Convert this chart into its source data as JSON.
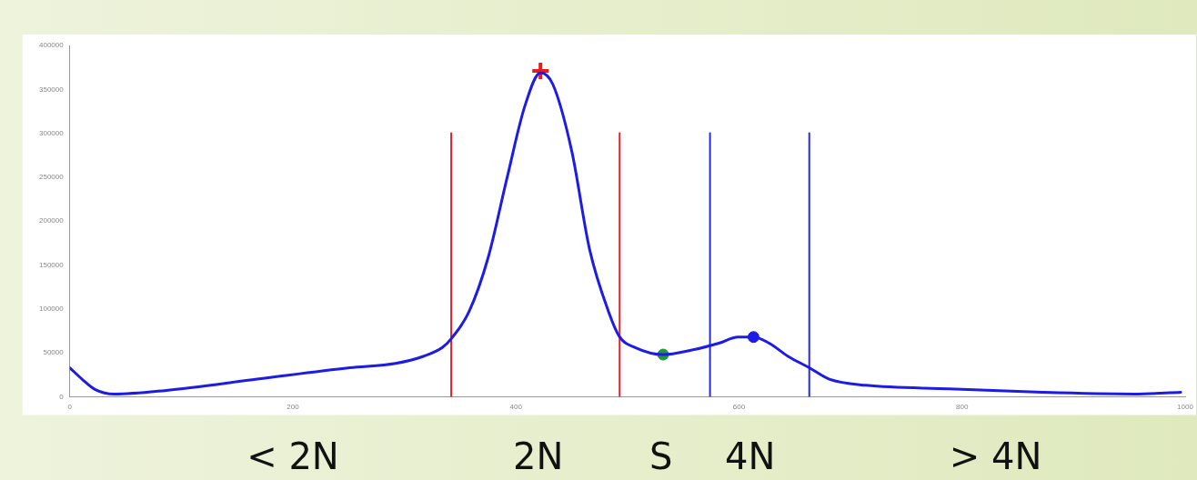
{
  "chart_data": {
    "type": "line",
    "xlim": [
      0,
      1000
    ],
    "xticks": [
      0,
      200,
      400,
      600,
      800,
      1000
    ],
    "ylim": [
      0,
      400000
    ],
    "yticks": [
      0,
      50000,
      100000,
      150000,
      200000,
      250000,
      300000,
      350000,
      400000
    ],
    "grid": false,
    "legend": false,
    "marker": "none",
    "series": [
      {
        "type": "line",
        "color": "#1c1ce6",
        "x": [
          0,
          11,
          23,
          40,
          85,
          168,
          251,
          292,
          317,
          334,
          342,
          358,
          375,
          392,
          408,
          422,
          433,
          450,
          466,
          483,
          493,
          507,
          532,
          557,
          582,
          599,
          613,
          627,
          644,
          663,
          681,
          714,
          789,
          872,
          954,
          996
        ],
        "values": [
          33000,
          20000,
          8000,
          3000,
          7000,
          20000,
          33000,
          38000,
          46000,
          56000,
          66000,
          97000,
          158000,
          249000,
          331000,
          369000,
          356000,
          280000,
          168000,
          97000,
          68000,
          56000,
          48000,
          53000,
          61000,
          68000,
          68000,
          61000,
          46000,
          33000,
          20000,
          13000,
          9000,
          5000,
          3000,
          5000
        ]
      },
      {
        "type": "line",
        "color": "#e0202a",
        "x": [
          342,
          342
        ],
        "values": [
          0,
          300000
        ]
      },
      {
        "type": "line",
        "color": "#e0202a",
        "x": [
          493,
          493
        ],
        "values": [
          0,
          300000
        ]
      },
      {
        "type": "line",
        "color": "#2a2ae6",
        "x": [
          574,
          574
        ],
        "values": [
          0,
          300000
        ]
      },
      {
        "type": "line",
        "color": "#2a2ae6",
        "x": [
          663,
          663
        ],
        "values": [
          0,
          300000
        ]
      },
      {
        "type": "scatter",
        "color": "#e81c1c",
        "marker": "cross",
        "x": [
          422
        ],
        "values": [
          371000
        ]
      },
      {
        "type": "scatter",
        "color": "#1e9a2e",
        "marker": "circle",
        "x": [
          532
        ],
        "values": [
          48000
        ]
      },
      {
        "type": "scatter",
        "color": "#1c1ce6",
        "marker": "circle",
        "x": [
          613
        ],
        "values": [
          68000
        ]
      }
    ],
    "annotations": [
      "< 2N",
      "2N",
      "S",
      "4N",
      "> 4N"
    ]
  }
}
